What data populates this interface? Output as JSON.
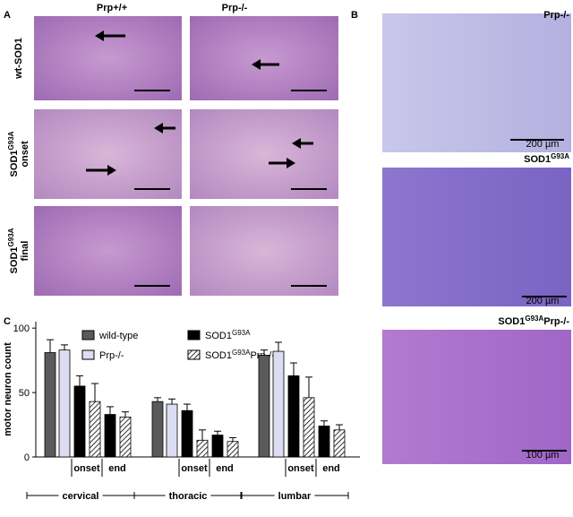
{
  "panel_a": {
    "label": "A",
    "columns": [
      "Prp+/+",
      "Prp-/-"
    ],
    "rows": [
      [
        "wt-SOD1"
      ],
      [
        "SOD1",
        "G93A",
        "onset"
      ],
      [
        "SOD1",
        "G93A",
        "final"
      ]
    ]
  },
  "panel_b": {
    "label": "B",
    "images": [
      {
        "title": [
          "Prp-/-"
        ],
        "scale": "200 µm"
      },
      {
        "title": [
          "SOD1",
          "G93A"
        ],
        "scale": "200 µm"
      },
      {
        "title": [
          "SOD1",
          "G93A",
          "Prp-/-"
        ],
        "scale": "100 µm"
      }
    ]
  },
  "chart_data": {
    "type": "bar",
    "panel_label": "C",
    "ylabel": "motor neuron count",
    "ylim": [
      0,
      105
    ],
    "yticks": [
      0,
      50,
      100
    ],
    "categories": [
      "cervical",
      "thoracic",
      "lumbar"
    ],
    "stages": [
      "onset",
      "end"
    ],
    "series": [
      {
        "name": [
          "wild-type"
        ],
        "color": "#5a5a5a",
        "values": [
          81,
          43,
          79
        ],
        "errors": [
          10,
          3,
          4
        ]
      },
      {
        "name": [
          "Prp-/-"
        ],
        "color": "#dcdcf2",
        "values": [
          83,
          41,
          82
        ],
        "errors": [
          4,
          4,
          7
        ]
      },
      {
        "name": [
          "SOD1",
          "G93A"
        ],
        "color": "#000000",
        "values": [
          [
            55,
            33
          ],
          [
            36,
            17
          ],
          [
            63,
            24
          ]
        ],
        "errors": [
          [
            8,
            6
          ],
          [
            5,
            3
          ],
          [
            10,
            4
          ]
        ]
      },
      {
        "name": [
          "SOD1",
          "G93A",
          "Prp-/-"
        ],
        "color": "hatch",
        "values": [
          [
            43,
            31
          ],
          [
            13,
            12
          ],
          [
            46,
            21
          ]
        ],
        "errors": [
          [
            14,
            4
          ],
          [
            8,
            3
          ],
          [
            16,
            4
          ]
        ]
      }
    ]
  }
}
